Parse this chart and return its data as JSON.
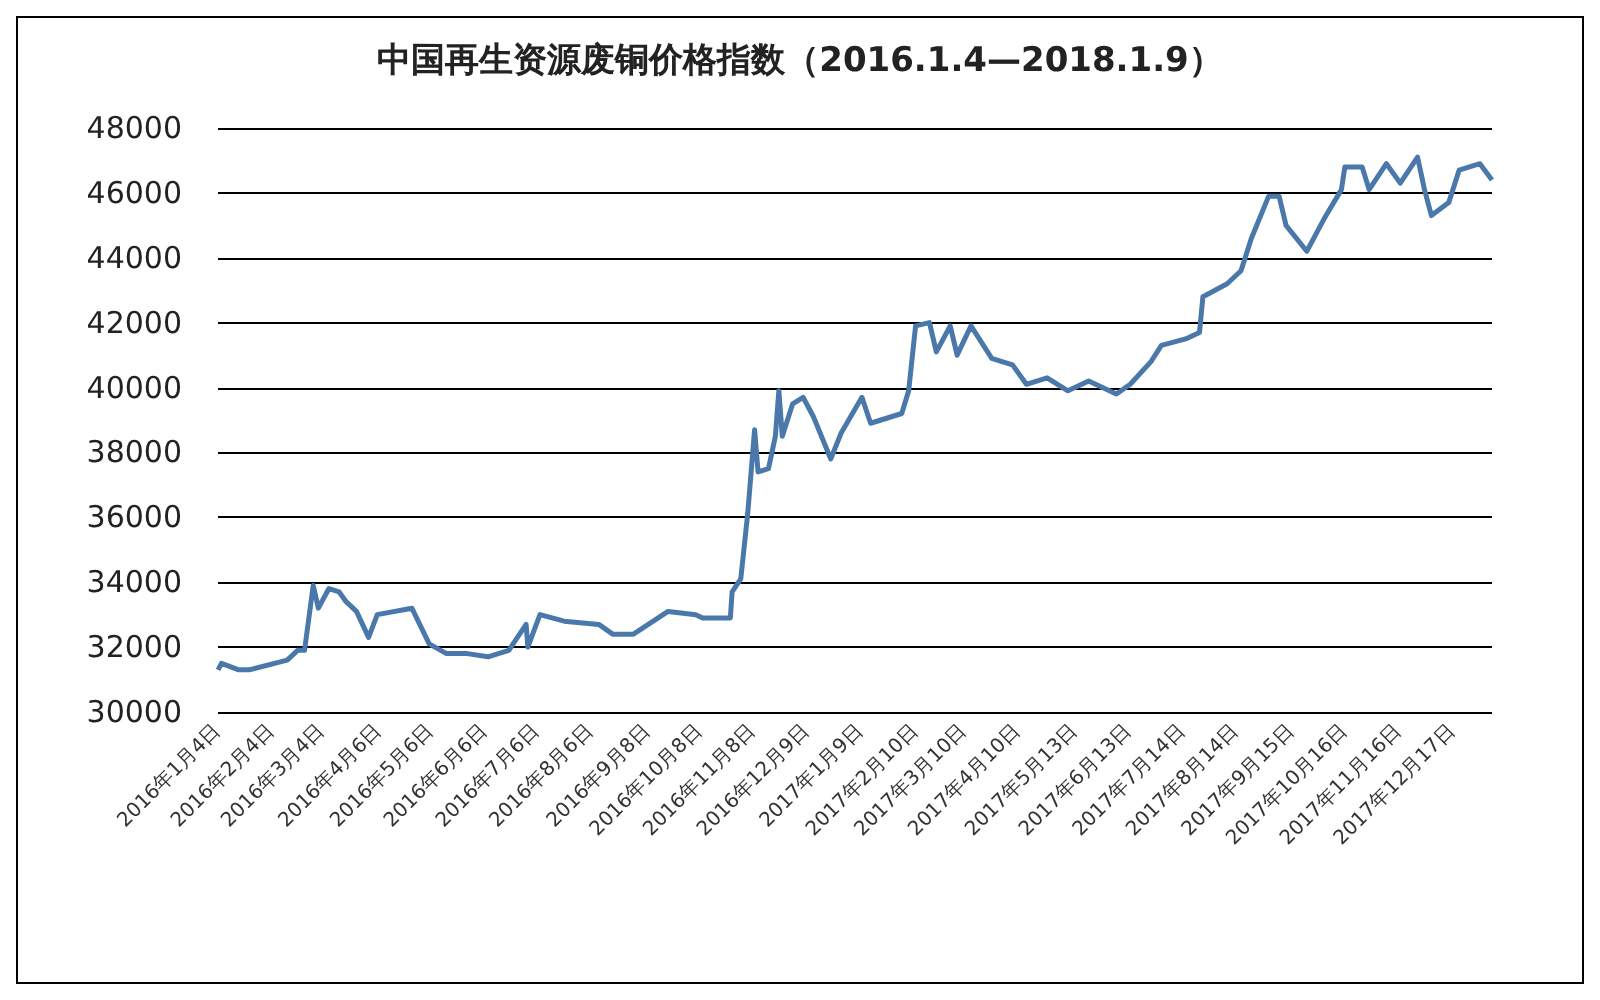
{
  "chart_data": {
    "type": "line",
    "title": "中国再生资源废铜价格指数（2016.1.4—2018.1.9）",
    "x": [
      "2016-01-04",
      "2016-01-06",
      "2016-01-16",
      "2016-01-22",
      "2016-02-13",
      "2016-02-19",
      "2016-02-23",
      "2016-02-28",
      "2016-03-02",
      "2016-03-08",
      "2016-03-14",
      "2016-03-18",
      "2016-03-24",
      "2016-03-31",
      "2016-04-05",
      "2016-04-25",
      "2016-05-05",
      "2016-05-15",
      "2016-05-27",
      "2016-06-08",
      "2016-06-20",
      "2016-06-30",
      "2016-07-01",
      "2016-07-08",
      "2016-07-22",
      "2016-08-11",
      "2016-08-19",
      "2016-08-31",
      "2016-09-20",
      "2016-10-06",
      "2016-10-10",
      "2016-10-26",
      "2016-10-27",
      "2016-11-01",
      "2016-11-05",
      "2016-11-09",
      "2016-11-11",
      "2016-11-17",
      "2016-11-21",
      "2016-11-23",
      "2016-11-25",
      "2016-12-01",
      "2016-12-07",
      "2016-12-13",
      "2016-12-23",
      "2016-12-29",
      "2017-01-10",
      "2017-01-15",
      "2017-02-02",
      "2017-02-06",
      "2017-02-10",
      "2017-02-18",
      "2017-02-22",
      "2017-03-02",
      "2017-03-06",
      "2017-03-14",
      "2017-03-26",
      "2017-04-07",
      "2017-04-15",
      "2017-04-27",
      "2017-05-09",
      "2017-05-21",
      "2017-06-06",
      "2017-06-14",
      "2017-06-26",
      "2017-07-02",
      "2017-07-16",
      "2017-07-24",
      "2017-07-26",
      "2017-08-09",
      "2017-08-17",
      "2017-08-23",
      "2017-09-02",
      "2017-09-08",
      "2017-09-12",
      "2017-09-24",
      "2017-10-04",
      "2017-10-14",
      "2017-10-16",
      "2017-10-26",
      "2017-10-30",
      "2017-11-09",
      "2017-11-17",
      "2017-11-27",
      "2017-12-01",
      "2017-12-05",
      "2017-12-15",
      "2017-12-21",
      "2018-01-02",
      "2018-01-09"
    ],
    "series": [
      {
        "color": "#4a78aa",
        "values": [
          31300,
          31500,
          31300,
          31300,
          31600,
          31900,
          31900,
          33900,
          33200,
          33800,
          33700,
          33400,
          33100,
          32300,
          33000,
          33200,
          32100,
          31800,
          31800,
          31700,
          31900,
          32700,
          32000,
          33000,
          32800,
          32700,
          32400,
          32400,
          33100,
          33000,
          32900,
          32900,
          33700,
          34100,
          36100,
          38700,
          37400,
          37500,
          38500,
          39900,
          38500,
          39500,
          39700,
          39100,
          37800,
          38600,
          39700,
          38900,
          39200,
          39900,
          41900,
          42000,
          41100,
          41900,
          41000,
          41900,
          40900,
          40700,
          40100,
          40300,
          39900,
          40200,
          39800,
          40100,
          40800,
          41300,
          41500,
          41700,
          42800,
          43200,
          43600,
          44600,
          45900,
          45900,
          45000,
          44200,
          45200,
          46100,
          46800,
          46800,
          46100,
          46900,
          46300,
          47100,
          46100,
          45300,
          45700,
          46700,
          46900,
          46400
        ]
      }
    ],
    "xlim": [
      "2016-01-04",
      "2018-01-09"
    ],
    "xticks": [
      {
        "value": "2016-01-04",
        "label": "2016年1月4日"
      },
      {
        "value": "2016-02-04",
        "label": "2016年2月4日"
      },
      {
        "value": "2016-03-04",
        "label": "2016年3月4日"
      },
      {
        "value": "2016-04-06",
        "label": "2016年4月6日"
      },
      {
        "value": "2016-05-06",
        "label": "2016年5月6日"
      },
      {
        "value": "2016-06-06",
        "label": "2016年6月6日"
      },
      {
        "value": "2016-07-06",
        "label": "2016年7月6日"
      },
      {
        "value": "2016-08-06",
        "label": "2016年8月6日"
      },
      {
        "value": "2016-09-08",
        "label": "2016年9月8日"
      },
      {
        "value": "2016-10-08",
        "label": "2016年10月8日"
      },
      {
        "value": "2016-11-08",
        "label": "2016年11月8日"
      },
      {
        "value": "2016-12-09",
        "label": "2016年12月9日"
      },
      {
        "value": "2017-01-09",
        "label": "2017年1月9日"
      },
      {
        "value": "2017-02-10",
        "label": "2017年2月10日"
      },
      {
        "value": "2017-03-10",
        "label": "2017年3月10日"
      },
      {
        "value": "2017-04-10",
        "label": "2017年4月10日"
      },
      {
        "value": "2017-05-13",
        "label": "2017年5月13日"
      },
      {
        "value": "2017-06-13",
        "label": "2017年6月13日"
      },
      {
        "value": "2017-07-14",
        "label": "2017年7月14日"
      },
      {
        "value": "2017-08-14",
        "label": "2017年8月14日"
      },
      {
        "value": "2017-09-15",
        "label": "2017年9月15日"
      },
      {
        "value": "2017-10-16",
        "label": "2017年10月16日"
      },
      {
        "value": "2017-11-16",
        "label": "2017年11月16日"
      },
      {
        "value": "2017-12-17",
        "label": "2017年12月17日"
      }
    ],
    "ylim": [
      30000,
      48000
    ],
    "yticks": [
      30000,
      32000,
      34000,
      36000,
      38000,
      40000,
      42000,
      44000,
      46000,
      48000
    ],
    "grid": "y",
    "marker": "none",
    "line_style": "solid"
  }
}
